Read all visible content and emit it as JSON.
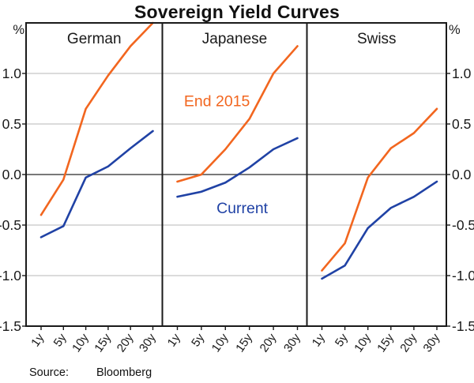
{
  "chart_data": {
    "type": "line",
    "title": "Sovereign Yield Curves",
    "y_unit_left": "%",
    "y_unit_right": "%",
    "categories": [
      "1y",
      "5y",
      "10y",
      "15y",
      "20y",
      "30y"
    ],
    "ylim": [
      -1.5,
      1.5
    ],
    "ytick_values": [
      1.0,
      0.5,
      0.0,
      -0.5,
      -1.0,
      -1.5
    ],
    "ytick_labels": [
      "1.0",
      "0.5",
      "0.0",
      "-0.5",
      "-1.0",
      "-1.5"
    ],
    "grid_values": [
      1.0,
      0.5,
      -0.5,
      -1.0
    ],
    "zero_line_value": 0.0,
    "grid": true,
    "legend_position": "inline-annotations",
    "colors": {
      "end_2015": "#F2661F",
      "current": "#2042A5",
      "gridline": "#C5C5C5",
      "zero_line": "#4D4D4D",
      "frame": "#1A1A1A"
    },
    "panels": [
      {
        "label": "German",
        "series": [
          {
            "name": "End 2015",
            "color_key": "end_2015",
            "values": [
              -0.4,
              -0.05,
              0.65,
              0.98,
              1.27,
              1.5
            ]
          },
          {
            "name": "Current",
            "color_key": "current",
            "values": [
              -0.62,
              -0.51,
              -0.03,
              0.08,
              0.26,
              0.43
            ]
          }
        ]
      },
      {
        "label": "Japanese",
        "series": [
          {
            "name": "End 2015",
            "color_key": "end_2015",
            "values": [
              -0.07,
              0.0,
              0.25,
              0.55,
              1.0,
              1.27
            ]
          },
          {
            "name": "Current",
            "color_key": "current",
            "values": [
              -0.22,
              -0.17,
              -0.08,
              0.07,
              0.25,
              0.36
            ]
          }
        ]
      },
      {
        "label": "Swiss",
        "series": [
          {
            "name": "End 2015",
            "color_key": "end_2015",
            "values": [
              -0.95,
              -0.68,
              -0.03,
              0.26,
              0.41,
              0.65
            ]
          },
          {
            "name": "Current",
            "color_key": "current",
            "values": [
              -1.03,
              -0.9,
              -0.53,
              -0.33,
              -0.22,
              -0.07
            ]
          }
        ]
      }
    ],
    "annotations": [
      {
        "text": "End 2015",
        "color_key": "end_2015",
        "panel": 1,
        "x_index": 1.65,
        "y_value": 0.73
      },
      {
        "text": "Current",
        "color_key": "current",
        "panel": 1,
        "x_index": 2.7,
        "y_value": -0.33
      }
    ]
  },
  "footer": {
    "source_label": "Source:",
    "source_value": "Bloomberg"
  }
}
